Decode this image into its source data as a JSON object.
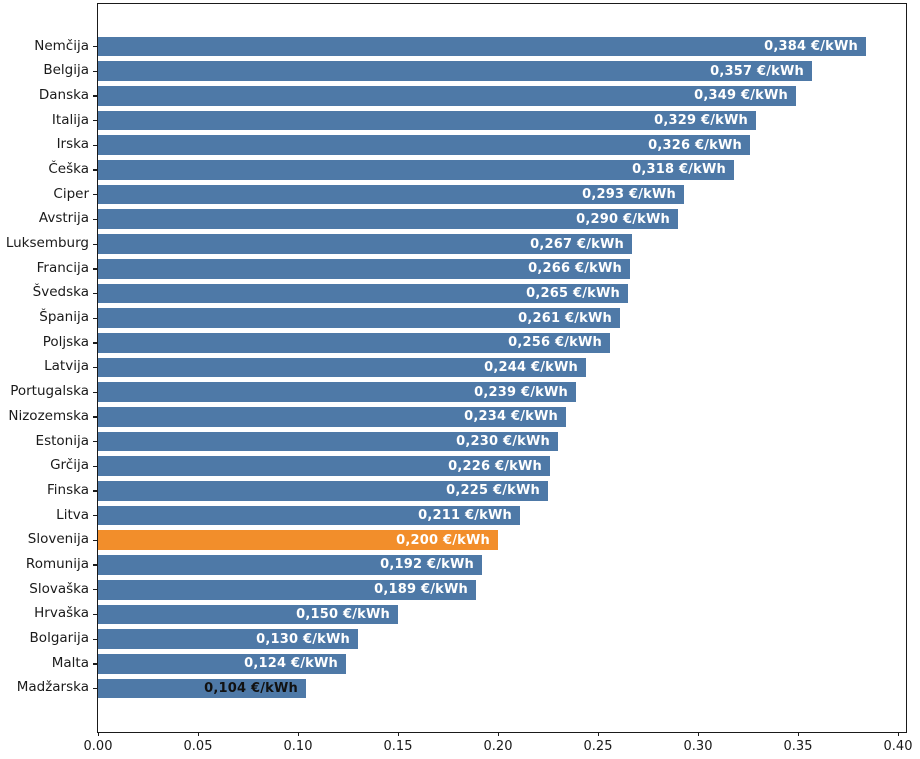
{
  "chart_data": {
    "type": "bar",
    "orientation": "horizontal",
    "title": "",
    "unit": "€/kWh",
    "categories": [
      "Nemčija",
      "Belgija",
      "Danska",
      "Italija",
      "Irska",
      "Češka",
      "Ciper",
      "Avstrija",
      "Luksemburg",
      "Francija",
      "Švedska",
      "Španija",
      "Poljska",
      "Latvija",
      "Portugalska",
      "Nizozemska",
      "Estonija",
      "Grčija",
      "Finska",
      "Litva",
      "Slovenija",
      "Romunija",
      "Slovaška",
      "Hrvaška",
      "Bolgarija",
      "Malta",
      "Madžarska"
    ],
    "values": [
      0.384,
      0.357,
      0.349,
      0.329,
      0.326,
      0.318,
      0.293,
      0.29,
      0.267,
      0.266,
      0.265,
      0.261,
      0.256,
      0.244,
      0.239,
      0.234,
      0.23,
      0.226,
      0.225,
      0.211,
      0.2,
      0.192,
      0.189,
      0.15,
      0.13,
      0.124,
      0.104
    ],
    "bar_labels": [
      "0,384 €/kWh",
      "0,357 €/kWh",
      "0,349 €/kWh",
      "0,329 €/kWh",
      "0,326 €/kWh",
      "0,318 €/kWh",
      "0,293 €/kWh",
      "0,290 €/kWh",
      "0,267 €/kWh",
      "0,266 €/kWh",
      "0,265 €/kWh",
      "0,261 €/kWh",
      "0,256 €/kWh",
      "0,244 €/kWh",
      "0,239 €/kWh",
      "0,234 €/kWh",
      "0,230 €/kWh",
      "0,226 €/kWh",
      "0,225 €/kWh",
      "0,211 €/kWh",
      "0,200 €/kWh",
      "0,192 €/kWh",
      "0,189 €/kWh",
      "0,150 €/kWh",
      "0,130 €/kWh",
      "0,124 €/kWh",
      "0,104 €/kWh"
    ],
    "highlight_category": "Slovenija",
    "highlight_index": 20,
    "colors": {
      "bar": "#4e79a7",
      "highlight_bar": "#f28e2b",
      "bar_label_default": "#ffffff",
      "axis": "#1a1a1a",
      "tick_label": "#1a1a1a",
      "background": "#ffffff"
    },
    "bar_label_color_overrides": {
      "26": "#111111"
    },
    "x_axis": {
      "ticks": [
        "0.00",
        "0.05",
        "0.10",
        "0.15",
        "0.20",
        "0.25",
        "0.30",
        "0.35",
        "0.40"
      ],
      "min": 0,
      "max": 0.404
    },
    "xlabel": "",
    "ylabel": "",
    "grid": false,
    "legend": null
  }
}
